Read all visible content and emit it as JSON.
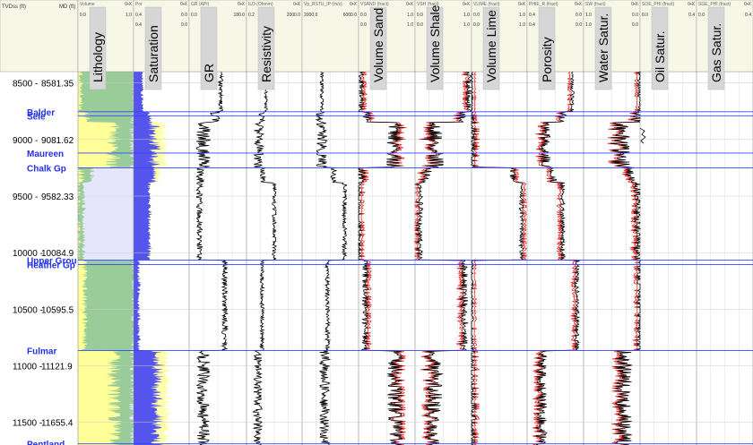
{
  "header": {
    "depth_col_title": "TVDss (ft)",
    "md_col_title": "MD (ft)"
  },
  "colors": {
    "header_bg": "#f7f7e8",
    "tops_line": "#3344ff",
    "tops_text": "#2233ee",
    "sand": "#ffff99",
    "shale": "#99cc99",
    "lime": "#e6e6fa",
    "water": "#5555ee",
    "porosity": "#ffffaa",
    "red_curve": "#ee2222"
  },
  "chart_data": {
    "type": "well_log",
    "depth_axis": {
      "range": [
        8400,
        11700
      ],
      "ticks": [
        {
          "tvdss": 8500,
          "md": "8581.35"
        },
        {
          "tvdss": 9000,
          "md": "9081.62"
        },
        {
          "tvdss": 9500,
          "md": "9582.33"
        },
        {
          "tvdss": 10000,
          "md": "10084.9"
        },
        {
          "tvdss": 10500,
          "md": "10595.5"
        },
        {
          "tvdss": 11000,
          "md": "11121.9"
        },
        {
          "tvdss": 11500,
          "md": "11655.4"
        }
      ]
    },
    "tops": [
      {
        "name": "Balder",
        "depth": 8755
      },
      {
        "name": "Sele",
        "depth": 8790
      },
      {
        "name": "Maureen",
        "depth": 9120
      },
      {
        "name": "Chalk Gp",
        "depth": 9250
      },
      {
        "name": "Upper Grou",
        "depth": 10065
      },
      {
        "name": "Heather Gp",
        "depth": 10105
      },
      {
        "name": "Fulmar",
        "depth": 10865
      },
      {
        "name": "Pentland",
        "depth": 11690
      }
    ],
    "tracks": [
      {
        "key": "lith",
        "name": "Lithology",
        "curve": "Volume",
        "scale": [
          "0.0",
          "1.0"
        ],
        "scale2": [
          "",
          ""
        ],
        "flags": "0▪X"
      },
      {
        "key": "sat",
        "name": "Saturation",
        "curve": "Por",
        "scale": [
          "0.4",
          "0.0"
        ],
        "scale2": [
          "0.4",
          "0.0"
        ],
        "flags": "0▪X"
      },
      {
        "key": "gr",
        "name": "GR",
        "curve": "GR (API)",
        "scale": [
          "0.0",
          "180.0"
        ],
        "scale2": [
          "",
          ""
        ],
        "flags": "0▪X"
      },
      {
        "key": "res",
        "name": "Resistivity",
        "curve": "ILD (Ohmm)",
        "scale": [
          "0.2",
          "2000.0"
        ],
        "scale2": [
          "",
          ""
        ],
        "flags": "0▪X"
      },
      {
        "key": "vp",
        "name": "",
        "curve": "Vp_RSTU_IP (m/s)",
        "scale": [
          "2000.0",
          "6000.0"
        ],
        "scale2": [
          "",
          ""
        ],
        "flags": "0▪X"
      },
      {
        "key": "vsand",
        "name": "Volume Sand",
        "curve": "VSAND (fract)",
        "scale": [
          "0.0",
          "1.0"
        ],
        "scale2": [
          "0.0",
          "1.0"
        ],
        "flags": "0▪X"
      },
      {
        "key": "vshale",
        "name": "Volume Shale",
        "curve": "VSH (fract)",
        "scale": [
          "0.0",
          "1.0"
        ],
        "scale2": [
          "0.0",
          "1.0"
        ],
        "flags": "0▪X"
      },
      {
        "key": "vlime",
        "name": "Volume Lime",
        "curve": "VLIME (fract)",
        "scale": [
          "0.0",
          "1.0"
        ],
        "scale2": [
          "0.0",
          "1.0"
        ],
        "flags": "0▪X"
      },
      {
        "key": "por",
        "name": "Porosity",
        "curve": "PHIE_R (fract)",
        "scale": [
          "0.4",
          "0.0"
        ],
        "scale2": [
          "0.4",
          "0.0"
        ],
        "flags": "0▪X"
      },
      {
        "key": "sw",
        "name": "Water Satur.",
        "curve": "SW (fract)",
        "scale": [
          "1.0",
          "0.0"
        ],
        "scale2": [
          "1.0",
          "0.0"
        ],
        "flags": "0▪X"
      },
      {
        "key": "so",
        "name": "Oil Satur.",
        "curve": "SOE_PHI (fract)",
        "scale": [
          "0.0",
          "0.4"
        ],
        "scale2": [
          "",
          ""
        ],
        "flags": "0▪X"
      },
      {
        "key": "sg",
        "name": "Gas Satur.",
        "curve": "SGE_PHI (fract)",
        "scale": [
          "0.0",
          "0.4"
        ],
        "scale2": [
          "",
          ""
        ],
        "flags": "0▪X"
      }
    ],
    "zones": [
      {
        "top": 8400,
        "base": 8755,
        "sand": 0.05,
        "lime": 0.0,
        "por": 0.08,
        "sw": 1.0,
        "gr": 0.55,
        "res": 0.35,
        "vp": 0.35,
        "rough": 0.15
      },
      {
        "top": 8755,
        "base": 8850,
        "sand": 0.15,
        "lime": 0.0,
        "por": 0.15,
        "sw": 0.95,
        "gr": 0.45,
        "res": 0.28,
        "vp": 0.32,
        "rough": 0.35
      },
      {
        "top": 8850,
        "base": 9250,
        "sand": 0.65,
        "lime": 0.0,
        "por": 0.28,
        "sw": 0.65,
        "gr": 0.25,
        "res": 0.22,
        "vp": 0.35,
        "rough": 0.5
      },
      {
        "top": 9250,
        "base": 9380,
        "sand": 0.05,
        "lime": 0.75,
        "por": 0.22,
        "sw": 0.8,
        "gr": 0.2,
        "res": 0.3,
        "vp": 0.55,
        "rough": 0.3
      },
      {
        "top": 9380,
        "base": 10065,
        "sand": 0.0,
        "lime": 0.9,
        "por": 0.15,
        "sw": 0.95,
        "gr": 0.18,
        "res": 0.5,
        "vp": 0.75,
        "rough": 0.2
      },
      {
        "top": 10065,
        "base": 10865,
        "sand": 0.12,
        "lime": 0.0,
        "por": 0.05,
        "sw": 1.0,
        "gr": 0.62,
        "res": 0.28,
        "vp": 0.45,
        "rough": 0.2
      },
      {
        "top": 10865,
        "base": 11700,
        "sand": 0.65,
        "lime": 0.0,
        "por": 0.3,
        "sw": 0.7,
        "gr": 0.25,
        "res": 0.2,
        "vp": 0.4,
        "rough": 0.45
      }
    ]
  }
}
